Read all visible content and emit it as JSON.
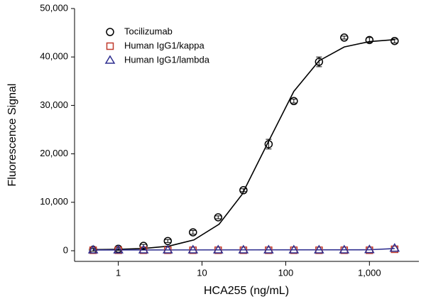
{
  "chart_data": {
    "type": "scatter",
    "xlabel": "HCA255 (ng/mL)",
    "ylabel": "Fluorescence Signal",
    "xscale": "log",
    "xlim": [
      0.3,
      3900
    ],
    "ylim": [
      -2200,
      50000
    ],
    "xticks": [
      1,
      10,
      100,
      {
        "value": 1000,
        "label": "1,000"
      }
    ],
    "yticks": [
      0,
      {
        "value": 10000,
        "label": "10,000"
      },
      {
        "value": 20000,
        "label": "20,000"
      },
      {
        "value": 30000,
        "label": "30,000"
      },
      {
        "value": 40000,
        "label": "40,000"
      },
      {
        "value": 50000,
        "label": "50,000"
      }
    ],
    "legend": "upper-left",
    "x": [
      0.5,
      1,
      2,
      3.9,
      7.8,
      15.6,
      31.25,
      62.5,
      125,
      250,
      500,
      1000,
      2000
    ],
    "series": [
      {
        "name": "Tocilizumab",
        "color": "#000000",
        "marker": "circle",
        "values": [
          200,
          400,
          1000,
          2000,
          3800,
          6900,
          12500,
          22000,
          30900,
          39000,
          44000,
          43500,
          43300
        ],
        "errors": [
          300,
          300,
          300,
          300,
          400,
          300,
          300,
          1000,
          400,
          1000,
          300,
          500,
          400
        ]
      },
      {
        "name": "Human IgG1/kappa",
        "color": "#c0392b",
        "marker": "square",
        "values": [
          100,
          100,
          100,
          100,
          100,
          100,
          100,
          100,
          100,
          100,
          100,
          100,
          300
        ]
      },
      {
        "name": "Human IgG1/lambda",
        "color": "#2e2e8f",
        "marker": "triangle",
        "values": [
          150,
          150,
          150,
          150,
          150,
          150,
          150,
          150,
          150,
          150,
          150,
          200,
          500
        ]
      }
    ],
    "curves": [
      {
        "color": "#000000",
        "x": [
          0.5,
          1,
          2,
          4,
          8,
          16,
          30,
          60,
          125,
          250,
          500,
          1000,
          2000
        ],
        "values": [
          233,
          294,
          464,
          940,
          2235,
          5478,
          11590,
          22000,
          32900,
          39210,
          42060,
          43170,
          43570
        ]
      },
      {
        "color": "#2e2e8f",
        "x": [
          0.5,
          1000,
          2000
        ],
        "values": [
          150,
          200,
          450
        ]
      }
    ]
  }
}
